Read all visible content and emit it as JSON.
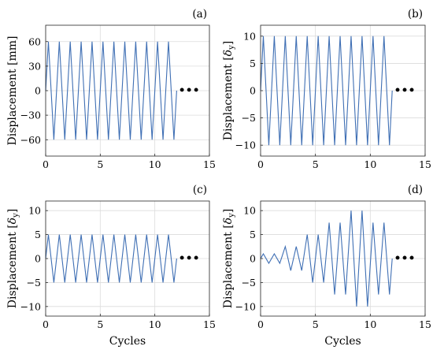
{
  "chart_data": [
    {
      "panel_label": "(a)",
      "type": "line",
      "xlabel": "",
      "ylabel": "Displacement [mm]",
      "xlim": [
        0,
        15
      ],
      "ylim": [
        -80,
        80
      ],
      "xticks": [
        0,
        5,
        10,
        15
      ],
      "yticks": [
        -60,
        -30,
        0,
        30,
        60
      ],
      "grid": true,
      "continuation_marker": "•••",
      "series": [
        {
          "color": "#3f6fb4",
          "x": [
            0,
            0.25,
            0.75,
            1.25,
            1.75,
            2.25,
            2.75,
            3.25,
            3.75,
            4.25,
            4.75,
            5.25,
            5.75,
            6.25,
            6.75,
            7.25,
            7.75,
            8.25,
            8.75,
            9.25,
            9.75,
            10.25,
            10.75,
            11.25,
            11.75,
            12.0
          ],
          "y": [
            0,
            60,
            -60,
            60,
            -60,
            60,
            -60,
            60,
            -60,
            60,
            -60,
            60,
            -60,
            60,
            -60,
            60,
            -60,
            60,
            -60,
            60,
            -60,
            60,
            -60,
            60,
            -60,
            0
          ]
        }
      ]
    },
    {
      "panel_label": "(b)",
      "type": "line",
      "xlabel": "",
      "ylabel": "Displacement [δ_y]",
      "ylabel_main": "Displacement [",
      "ylabel_sym": "δ",
      "ylabel_sub": "y",
      "ylabel_end": "]",
      "xlim": [
        0,
        15
      ],
      "ylim": [
        -12,
        12
      ],
      "xticks": [
        0,
        5,
        10,
        15
      ],
      "yticks": [
        -10,
        -5,
        0,
        5,
        10
      ],
      "grid": true,
      "continuation_marker": "•••",
      "series": [
        {
          "color": "#3f6fb4",
          "x": [
            0,
            0.25,
            0.75,
            1.25,
            1.75,
            2.25,
            2.75,
            3.25,
            3.75,
            4.25,
            4.75,
            5.25,
            5.75,
            6.25,
            6.75,
            7.25,
            7.75,
            8.25,
            8.75,
            9.25,
            9.75,
            10.25,
            10.75,
            11.25,
            11.75,
            12.0
          ],
          "y": [
            0,
            10,
            -10,
            10,
            -10,
            10,
            -10,
            10,
            -10,
            10,
            -10,
            10,
            -10,
            10,
            -10,
            10,
            -10,
            10,
            -10,
            10,
            -10,
            10,
            -10,
            10,
            -10,
            0
          ]
        }
      ]
    },
    {
      "panel_label": "(c)",
      "type": "line",
      "xlabel": "Cycles",
      "ylabel": "Displacement [δ_y]",
      "ylabel_main": "Displacement [",
      "ylabel_sym": "δ",
      "ylabel_sub": "y",
      "ylabel_end": "]",
      "xlim": [
        0,
        15
      ],
      "ylim": [
        -12,
        12
      ],
      "xticks": [
        0,
        5,
        10,
        15
      ],
      "yticks": [
        -10,
        -5,
        0,
        5,
        10
      ],
      "grid": true,
      "continuation_marker": "•••",
      "series": [
        {
          "color": "#3f6fb4",
          "x": [
            0,
            0.25,
            0.75,
            1.25,
            1.75,
            2.25,
            2.75,
            3.25,
            3.75,
            4.25,
            4.75,
            5.25,
            5.75,
            6.25,
            6.75,
            7.25,
            7.75,
            8.25,
            8.75,
            9.25,
            9.75,
            10.25,
            10.75,
            11.25,
            11.75,
            12.0
          ],
          "y": [
            0,
            5,
            -5,
            5,
            -5,
            5,
            -5,
            5,
            -5,
            5,
            -5,
            5,
            -5,
            5,
            -5,
            5,
            -5,
            5,
            -5,
            5,
            -5,
            5,
            -5,
            5,
            -5,
            0
          ]
        }
      ]
    },
    {
      "panel_label": "(d)",
      "type": "line",
      "xlabel": "Cycles",
      "ylabel": "Displacement [δ_y]",
      "ylabel_main": "Displacement [",
      "ylabel_sym": "δ",
      "ylabel_sub": "y",
      "ylabel_end": "]",
      "xlim": [
        0,
        15
      ],
      "ylim": [
        -12,
        12
      ],
      "xticks": [
        0,
        5,
        10,
        15
      ],
      "yticks": [
        -10,
        -5,
        0,
        5,
        10
      ],
      "grid": true,
      "continuation_marker": "•••",
      "series": [
        {
          "color": "#3f6fb4",
          "x": [
            0,
            0.25,
            0.75,
            1.25,
            1.75,
            2.25,
            2.75,
            3.25,
            3.75,
            4.25,
            4.75,
            5.25,
            5.75,
            6.25,
            6.75,
            7.25,
            7.75,
            8.25,
            8.75,
            9.25,
            9.75,
            10.25,
            10.75,
            11.25,
            11.75,
            12.0
          ],
          "y": [
            0,
            1,
            -1,
            1,
            -1,
            2.5,
            -2.5,
            2.5,
            -2.5,
            5,
            -5,
            5,
            -5,
            7.5,
            -7.5,
            7.5,
            -7.5,
            10,
            -10,
            10,
            -10,
            7.5,
            -7.5,
            7.5,
            -7.5,
            0
          ]
        }
      ]
    }
  ]
}
